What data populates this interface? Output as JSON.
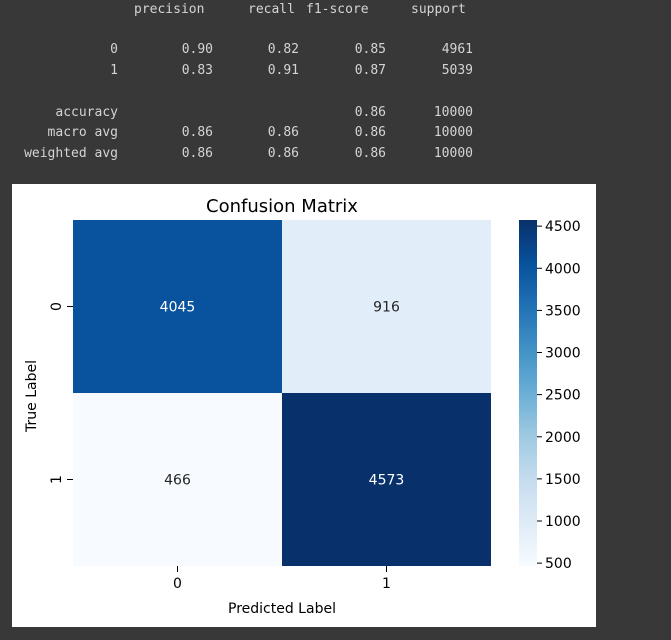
{
  "report": {
    "headers": [
      "precision",
      "recall",
      "f1-score",
      "support"
    ],
    "rows": [
      {
        "label": "0",
        "precision": "0.90",
        "recall": "0.82",
        "f1": "0.85",
        "support": "4961"
      },
      {
        "label": "1",
        "precision": "0.83",
        "recall": "0.91",
        "f1": "0.87",
        "support": "5039"
      },
      {
        "label": "accuracy",
        "precision": "",
        "recall": "",
        "f1": "0.86",
        "support": "10000"
      },
      {
        "label": "macro avg",
        "precision": "0.86",
        "recall": "0.86",
        "f1": "0.86",
        "support": "10000"
      },
      {
        "label": "weighted avg",
        "precision": "0.86",
        "recall": "0.86",
        "f1": "0.86",
        "support": "10000"
      }
    ]
  },
  "chart_data": {
    "type": "heatmap",
    "title": "Confusion Matrix",
    "xlabel": "Predicted Label",
    "ylabel": "True Label",
    "x_categories": [
      "0",
      "1"
    ],
    "y_categories": [
      "0",
      "1"
    ],
    "values": [
      [
        4045,
        916
      ],
      [
        466,
        4573
      ]
    ],
    "colormap": "Blues",
    "colorbar": {
      "min": 466,
      "max": 4573,
      "ticks": [
        500,
        1000,
        1500,
        2000,
        2500,
        3000,
        3500,
        4000,
        4500
      ]
    }
  }
}
